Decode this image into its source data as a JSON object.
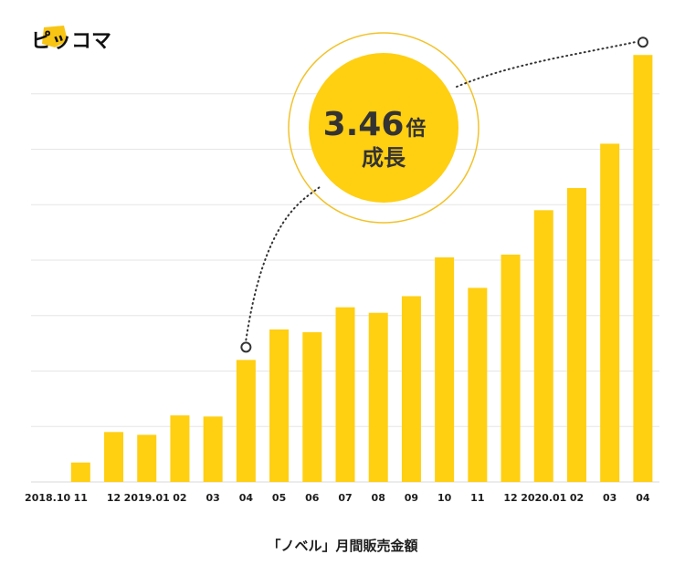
{
  "brand": {
    "name": "ピッコマ",
    "accent_color": "#F8C514"
  },
  "colors": {
    "bar": "#FFCF12",
    "grid": "#E6E6E6",
    "text": "#1E1E1E",
    "dots": "#333333",
    "ring": "#F2C22A"
  },
  "callout": {
    "multiplier": "3.46",
    "unit": "倍",
    "label": "成長"
  },
  "caption": "「ノベル」月間販売金額",
  "chart_data": {
    "type": "bar",
    "title": "「ノベル」月間販売金額",
    "xlabel": "",
    "ylabel": "",
    "categories": [
      "2018.10",
      "11",
      "12",
      "2019.01",
      "02",
      "03",
      "04",
      "05",
      "06",
      "07",
      "08",
      "09",
      "10",
      "11",
      "12",
      "2020.01",
      "02",
      "03",
      "04"
    ],
    "values": [
      0,
      3.5,
      9,
      8.5,
      12,
      11.8,
      22,
      27.5,
      27,
      31.5,
      30.5,
      33.5,
      40.5,
      35,
      41,
      49,
      53,
      61,
      77
    ],
    "ylim": [
      0,
      80
    ],
    "grid": true,
    "y_tick_labels_shown": false,
    "annotation": {
      "text": "3.46倍 成長",
      "from_category_index": 6,
      "to_category_index": 18
    }
  }
}
